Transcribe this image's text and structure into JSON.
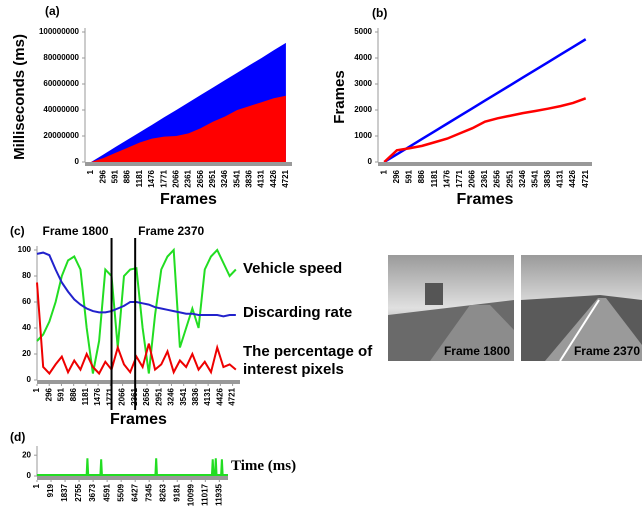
{
  "chart_data": [
    {
      "type": "area",
      "label": "(a)",
      "y_label": "Milliseconds (ms)",
      "x_label": "Frames",
      "categories": [
        "1",
        "296",
        "591",
        "886",
        "1181",
        "1476",
        "1771",
        "2066",
        "2361",
        "2656",
        "2951",
        "3246",
        "3541",
        "3836",
        "4131",
        "4426",
        "4721"
      ],
      "series": [
        {
          "color": "#0000ff",
          "values": [
            0,
            5700000,
            11500000,
            17200000,
            22900000,
            28600000,
            34400000,
            40000000,
            45800000,
            51500000,
            57200000,
            63000000,
            68700000,
            74400000,
            80000000,
            86000000,
            91600000
          ]
        },
        {
          "color": "#ff0000",
          "values": [
            0,
            3000000,
            7000000,
            11000000,
            15000000,
            18000000,
            19500000,
            20000000,
            22000000,
            26000000,
            31000000,
            35000000,
            40000000,
            43000000,
            46000000,
            49000000,
            51000000
          ]
        }
      ],
      "ylim": [
        0,
        100000000
      ],
      "yticks": [
        0,
        20000000,
        40000000,
        60000000,
        80000000,
        100000000
      ]
    },
    {
      "type": "line",
      "label": "(b)",
      "y_label": "Frames",
      "x_label": "Frames",
      "categories": [
        "1",
        "296",
        "591",
        "886",
        "1181",
        "1476",
        "1771",
        "2066",
        "2361",
        "2656",
        "2951",
        "3246",
        "3541",
        "3836",
        "4131",
        "4426",
        "4721"
      ],
      "series": [
        {
          "color": "#0000ff",
          "values": [
            1,
            296,
            591,
            886,
            1181,
            1476,
            1771,
            2066,
            2361,
            2656,
            2951,
            3246,
            3541,
            3836,
            4131,
            4426,
            4721
          ]
        },
        {
          "color": "#ff0000",
          "values": [
            0,
            450,
            530,
            620,
            760,
            900,
            1100,
            1300,
            1550,
            1680,
            1780,
            1880,
            1960,
            2050,
            2150,
            2270,
            2450
          ]
        }
      ],
      "ylim": [
        0,
        5000
      ],
      "yticks": [
        0,
        1000,
        2000,
        3000,
        4000,
        5000
      ]
    },
    {
      "type": "line",
      "label": "(c)",
      "x_label": "Frames",
      "x": [
        1,
        150,
        300,
        450,
        600,
        750,
        900,
        1050,
        1200,
        1350,
        1500,
        1650,
        1800,
        1950,
        2100,
        2250,
        2400,
        2550,
        2700,
        2850,
        3000,
        3150,
        3300,
        3450,
        3600,
        3750,
        3900,
        4050,
        4200,
        4350,
        4500,
        4650,
        4800
      ],
      "series": [
        {
          "name": "Vehicle speed",
          "color": "#22dd22",
          "values": [
            30,
            35,
            45,
            60,
            80,
            92,
            95,
            85,
            40,
            5,
            30,
            85,
            80,
            25,
            80,
            85,
            86,
            40,
            5,
            50,
            85,
            95,
            100,
            25,
            40,
            55,
            40,
            85,
            95,
            100,
            90,
            80,
            85
          ]
        },
        {
          "name": "Discarding rate",
          "color": "#2222cc",
          "values": [
            97,
            98,
            96,
            85,
            75,
            68,
            62,
            58,
            55,
            53,
            52,
            52,
            53,
            55,
            57,
            60,
            60,
            59,
            58,
            56,
            55,
            54,
            53,
            52,
            51,
            51,
            50,
            50,
            50,
            50,
            49,
            50,
            50
          ]
        },
        {
          "name": "The percentage of interest pixels",
          "color": "#ee0000",
          "values": [
            75,
            10,
            5,
            12,
            18,
            6,
            15,
            8,
            20,
            10,
            5,
            14,
            8,
            25,
            12,
            6,
            18,
            10,
            28,
            8,
            12,
            22,
            6,
            15,
            10,
            20,
            8,
            14,
            6,
            25,
            10,
            12,
            8
          ]
        }
      ],
      "xlim": [
        1,
        4900
      ],
      "xticks": [
        1,
        296,
        591,
        886,
        1181,
        1476,
        1771,
        2066,
        2361,
        2656,
        2951,
        3246,
        3541,
        3836,
        4131,
        4426,
        4721
      ],
      "ylim": [
        0,
        100
      ],
      "yticks": [
        0,
        20,
        40,
        60,
        80,
        100
      ],
      "annotations": [
        {
          "text": "Frame 1800",
          "x": 1800
        },
        {
          "text": "Frame 2370",
          "x": 2370
        }
      ]
    },
    {
      "type": "line",
      "label": "(d)",
      "x": [
        1,
        3250,
        3300,
        3350,
        4150,
        4200,
        4250,
        7750,
        7800,
        7850,
        11450,
        11500,
        11550,
        11650,
        11700,
        11750,
        12050,
        12100,
        12150,
        12500
      ],
      "series": [
        {
          "name": "Time (ms)",
          "color": "#22dd22",
          "values": [
            1,
            1,
            17,
            1,
            1,
            16,
            1,
            1,
            17,
            1,
            1,
            16,
            1,
            1,
            17,
            1,
            1,
            16,
            1,
            1
          ]
        }
      ],
      "xlim": [
        1,
        12500
      ],
      "xticks": [
        1,
        919,
        1837,
        2755,
        3673,
        4591,
        5509,
        6427,
        7345,
        8263,
        9181,
        10099,
        11017,
        11935
      ],
      "ylim": [
        0,
        25
      ],
      "yticks": [
        0,
        20
      ]
    }
  ],
  "images": [
    {
      "label": "Frame 1800"
    },
    {
      "label": "Frame 2370"
    }
  ]
}
